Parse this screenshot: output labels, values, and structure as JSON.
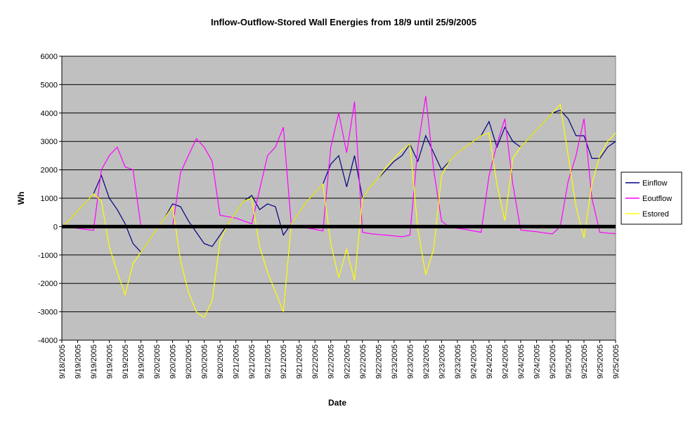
{
  "chart_data": {
    "type": "line",
    "title": "Inflow-Outflow-Stored Wall Energies from 18/9 until 25/9/2005",
    "x_label": "Date",
    "y_label": "Wh",
    "categories": [
      "9/18/2005",
      null,
      "9/19/2005",
      null,
      "9/19/2005",
      null,
      "9/19/2005",
      null,
      "9/19/2005",
      null,
      "9/19/2005",
      null,
      "9/20/2005",
      null,
      "9/20/2005",
      null,
      "9/20/2005",
      null,
      "9/20/2005",
      null,
      "9/20/2005",
      null,
      "9/21/2005",
      null,
      "9/21/2005",
      null,
      "9/21/2005",
      null,
      "9/21/2005",
      null,
      "9/21/2005",
      null,
      "9/22/2005",
      null,
      "9/22/2005",
      null,
      "9/22/2005",
      null,
      "9/22/2005",
      null,
      "9/22/2005",
      null,
      "9/23/2005",
      null,
      "9/23/2005",
      null,
      "9/23/2005",
      null,
      "9/23/2005",
      null,
      "9/23/2005",
      null,
      "9/24/2005",
      null,
      "9/24/2005",
      null,
      "9/24/2005",
      null,
      "9/24/2005",
      null,
      "9/24/2005",
      null,
      "9/25/2005",
      null,
      "9/25/2005",
      null,
      "9/25/2005",
      null,
      "9/25/2005",
      null,
      "9/25/2005"
    ],
    "series": [
      {
        "name": "Einflow",
        "color": "#000080",
        "values": [
          0,
          250,
          550,
          850,
          1150,
          1800,
          1000,
          600,
          100,
          -600,
          -900,
          -500,
          -100,
          300,
          800,
          700,
          200,
          -200,
          -600,
          -700,
          -300,
          100,
          500,
          900,
          1100,
          600,
          800,
          700,
          -300,
          100,
          500,
          900,
          1200,
          1500,
          2200,
          2500,
          1400,
          2500,
          1000,
          1400,
          1700,
          2000,
          2300,
          2500,
          2900,
          2300,
          3200,
          2600,
          2000,
          2300,
          2600,
          2800,
          3000,
          3200,
          3700,
          2800,
          3500,
          3000,
          2800,
          3100,
          3400,
          3700,
          4000,
          4100,
          3800,
          3200,
          3200,
          2400,
          2400,
          2800,
          3000
        ]
      },
      {
        "name": "Eoutflow",
        "color": "#ff00ff",
        "values": [
          0,
          -30,
          -60,
          -100,
          -130,
          2000,
          2500,
          2800,
          2100,
          2000,
          0,
          0,
          0,
          -50,
          0,
          1900,
          2500,
          3100,
          2800,
          2300,
          400,
          350,
          300,
          200,
          100,
          1300,
          2500,
          2800,
          3500,
          50,
          0,
          -50,
          -100,
          -150,
          2800,
          4000,
          2600,
          4400,
          -200,
          -250,
          -280,
          -300,
          -330,
          -360,
          -300,
          2800,
          4600,
          2000,
          200,
          -30,
          -60,
          -100,
          -150,
          -200,
          1800,
          2900,
          3800,
          1500,
          -120,
          -150,
          -180,
          -220,
          -260,
          0,
          1600,
          2500,
          3800,
          1000,
          -200,
          -230,
          -250
        ]
      },
      {
        "name": "Estored",
        "color": "#ffff00",
        "values": [
          0,
          250,
          550,
          850,
          1150,
          900,
          -700,
          -1600,
          -2400,
          -1300,
          -900,
          -500,
          -100,
          300,
          700,
          -1200,
          -2300,
          -3000,
          -3200,
          -2600,
          -500,
          100,
          500,
          900,
          1000,
          -700,
          -1600,
          -2300,
          -3000,
          100,
          500,
          900,
          1200,
          1500,
          -600,
          -1800,
          -800,
          -1900,
          1000,
          1400,
          1700,
          2100,
          2400,
          2700,
          2900,
          -100,
          -1700,
          -800,
          1800,
          2300,
          2600,
          2800,
          3000,
          3200,
          3300,
          1500,
          200,
          2400,
          2800,
          3100,
          3400,
          3700,
          4000,
          4300,
          2500,
          700,
          -400,
          1500,
          2500,
          3000,
          3300
        ]
      }
    ],
    "ylim": [
      -4000,
      6000
    ],
    "yticks": [
      -4000,
      -3000,
      -2000,
      -1000,
      0,
      1000,
      2000,
      3000,
      4000,
      5000,
      6000
    ],
    "grid": true,
    "legend": "right"
  }
}
